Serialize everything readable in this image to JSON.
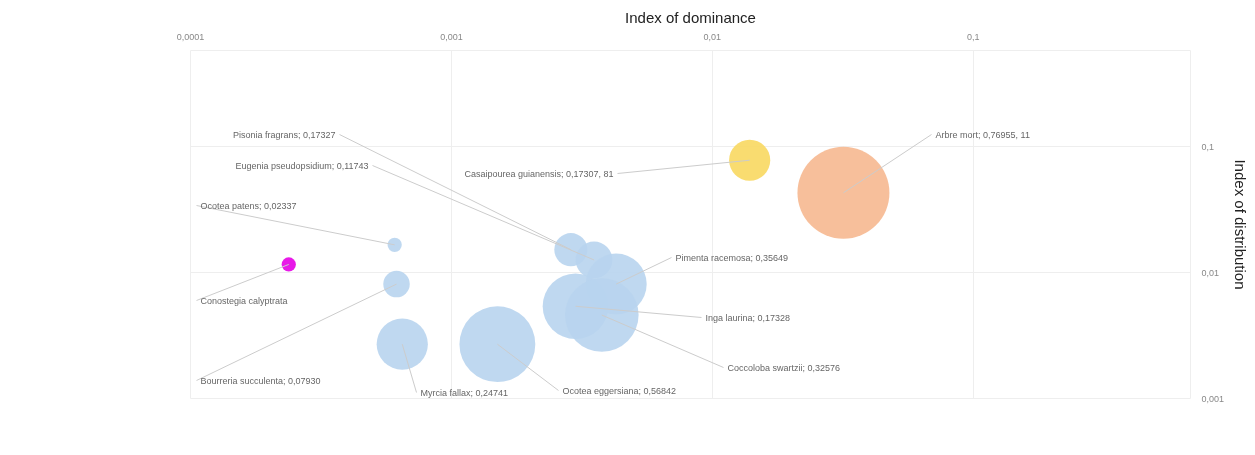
{
  "chart_data": {
    "type": "bubble",
    "xlabel": "Index of dominance",
    "ylabel": "Index of distribution",
    "log": "xy",
    "grid": true,
    "xlim": [
      0.0001,
      0.68
    ],
    "ylim": [
      0.001,
      0.58
    ],
    "xticks": [
      {
        "value": 0.0001,
        "label": "0,0001"
      },
      {
        "value": 0.001,
        "label": "0,001"
      },
      {
        "value": 0.01,
        "label": "0,01"
      },
      {
        "value": 0.1,
        "label": "0,1"
      }
    ],
    "yticks": [
      {
        "value": 0.001,
        "label": "0,001"
      },
      {
        "value": 0.01,
        "label": "0,01"
      },
      {
        "value": 0.1,
        "label": "0,1"
      }
    ],
    "x": [
      0.0139,
      0.0318,
      0.00287,
      0.00352,
      0.000606,
      0.000238,
      0.000616,
      0.000648,
      0.0015,
      0.00428,
      0.00299,
      0.00377
    ],
    "values": [
      0.078,
      0.043,
      0.0152,
      0.0126,
      0.0166,
      0.0116,
      0.0081,
      0.0027,
      0.0027,
      0.0081,
      0.0054,
      0.0046
    ],
    "sizes": [
      0.2,
      1,
      0.13,
      0.16,
      0.024,
      0.024,
      0.083,
      0.31,
      0.68,
      0.44,
      0.51,
      0.64
    ],
    "colors": [
      "#f8d860",
      "#f6b890",
      "#b8d4ee",
      "#b8d4ee",
      "#b8d4ee",
      "#e600e6",
      "#b8d4ee",
      "#b8d4ee",
      "#b8d4ee",
      "#b8d4ee",
      "#b8d4ee",
      "#b8d4ee"
    ],
    "annotations": [
      {
        "text": "Casaipourea guianensis; 0,17307, 81",
        "x": 0.0139,
        "y": 0.078
      },
      {
        "text": "Arbre mort; 0,76955, 11",
        "x": 0.0318,
        "y": 0.043
      },
      {
        "text": "Pisonia fragrans; 0,17327",
        "x": 0.00287,
        "y": 0.0152
      },
      {
        "text": "Eugenia pseudopsidium; 0,11743",
        "x": 0.00352,
        "y": 0.0126
      },
      {
        "text": "Ocotea patens; 0,02337",
        "x": 0.000606,
        "y": 0.0166
      },
      {
        "text": "Conostegia calyptrata",
        "x": 0.000238,
        "y": 0.0116
      },
      {
        "text": "Bourreria succulenta; 0,07930",
        "x": 0.000616,
        "y": 0.0081
      },
      {
        "text": "Myrcia fallax; 0,24741",
        "x": 0.000648,
        "y": 0.0027
      },
      {
        "text": "Ocotea eggersiana; 0,56842",
        "x": 0.0015,
        "y": 0.0027
      },
      {
        "text": "Pimenta racemosa; 0,35649",
        "x": 0.00428,
        "y": 0.0081
      },
      {
        "text": "Inga laurina; 0,17328",
        "x": 0.00299,
        "y": 0.0054
      },
      {
        "text": "Coccoloba swartzii; 0,32576",
        "x": 0.00377,
        "y": 0.0046
      }
    ]
  }
}
